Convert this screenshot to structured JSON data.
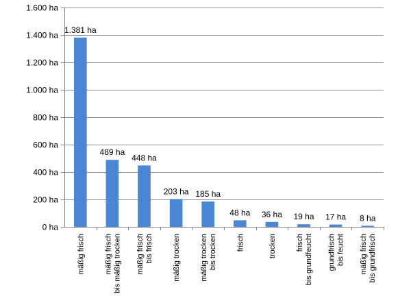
{
  "chart_data": {
    "type": "bar",
    "title": "",
    "xlabel": "",
    "ylabel": "",
    "unit": "ha",
    "ylim": [
      0,
      1600
    ],
    "yticks": [
      0,
      200,
      400,
      600,
      800,
      1000,
      1200,
      1400,
      1600
    ],
    "ytick_labels": [
      "0 ha",
      "200 ha",
      "400 ha",
      "600 ha",
      "800 ha",
      "1.000 ha",
      "1.200 ha",
      "1.400 ha",
      "1.600 ha"
    ],
    "grid": true,
    "bar_color": "#4a86d4",
    "categories": [
      [
        "mäßig frisch"
      ],
      [
        "mäßig frisch",
        "bis mäßig trocken"
      ],
      [
        "mäßig frisch",
        "bis frisch"
      ],
      [
        "mäßig trocken"
      ],
      [
        "mäßig trocken",
        "bis trocken"
      ],
      [
        "frisch"
      ],
      [
        "trocken"
      ],
      [
        "frisch",
        "bis grundfeucht"
      ],
      [
        "grundfrisch",
        "bis feucht"
      ],
      [
        "mäßig frisch",
        "bis grundfrisch"
      ]
    ],
    "values": [
      1381,
      489,
      448,
      203,
      185,
      48,
      36,
      19,
      17,
      8
    ],
    "value_labels": [
      "1.381 ha",
      "489 ha",
      "448 ha",
      "203 ha",
      "185 ha",
      "48 ha",
      "36 ha",
      "19 ha",
      "17 ha",
      "8 ha"
    ]
  }
}
